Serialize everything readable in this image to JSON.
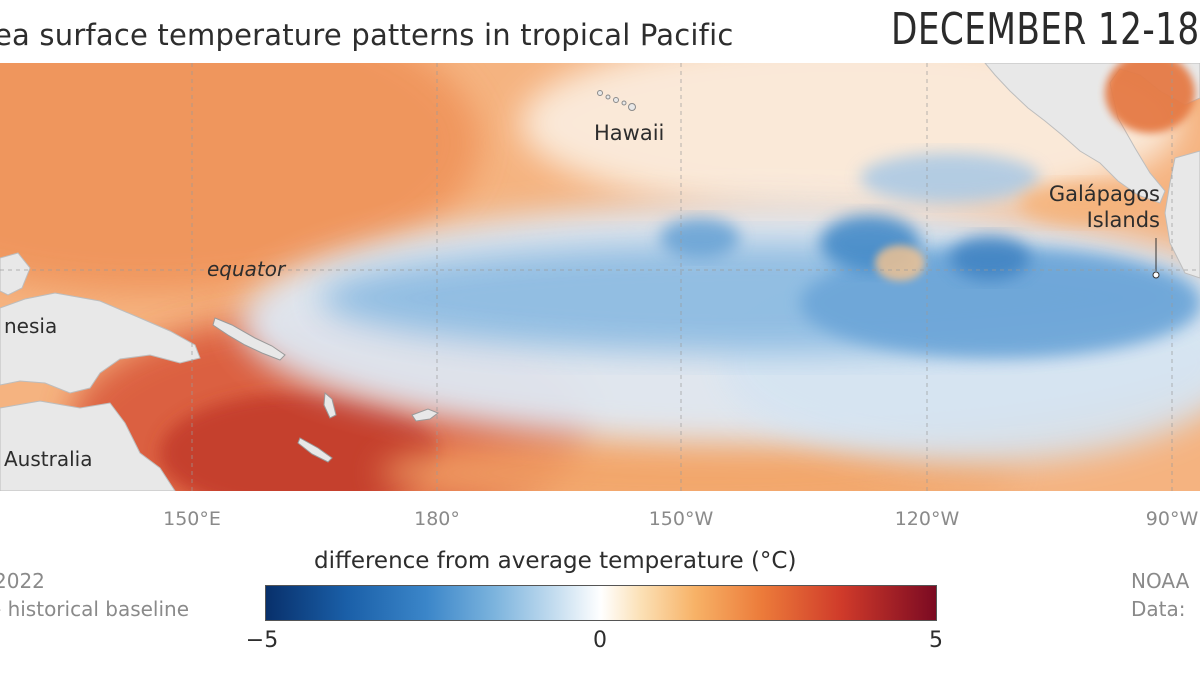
{
  "header": {
    "title": "ea surface temperature patterns in tropical Pacific",
    "date": "DECEMBER 12-18"
  },
  "map": {
    "labels": {
      "hawaii": "Hawaii",
      "galapagos_line1": "Galápagos",
      "galapagos_line2": "Islands",
      "equator": "equator",
      "indonesia": "nesia",
      "australia": "Australia"
    },
    "longitudes": [
      "150°E",
      "180°",
      "150°W",
      "120°W",
      "90°W"
    ],
    "colors": {
      "land": "#e6e6e6",
      "warm": "#f2a063",
      "hot": "#d24a33",
      "cool": "#7fb2dc",
      "cold": "#3d86c6",
      "neutral": "#fbf3ea"
    }
  },
  "legend": {
    "title": "difference from average temperature (°C)",
    "min_label": "−5",
    "mid_label": "0",
    "max_label": "5",
    "range": [
      -5,
      5
    ]
  },
  "footer": {
    "left_line1": "2022",
    "left_line2": "- historical baseline",
    "right_line1": "NOAA",
    "right_line2": "Data:"
  }
}
